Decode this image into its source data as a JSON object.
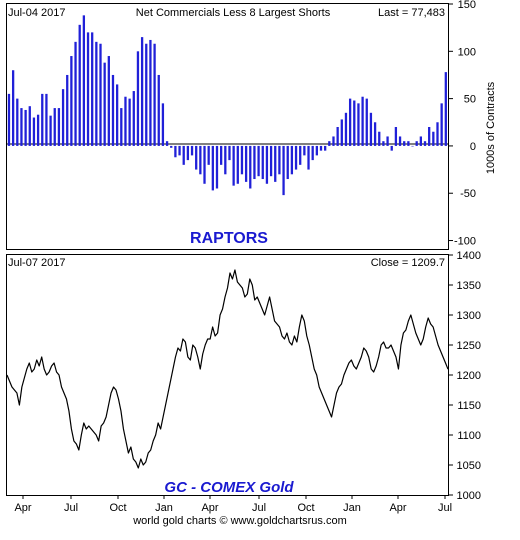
{
  "chart_data": [
    {
      "type": "bar",
      "title": "Net Commercials Less 8 Largest Shorts",
      "date_label": "Jul-04  2017",
      "last_label": "Last = 77,483",
      "ylabel": "1000s of Contracts",
      "annotation": "RAPTORS",
      "ylim": [
        -110,
        150
      ],
      "yticks": [
        150,
        100,
        50,
        0,
        -50,
        -100
      ],
      "grid": false,
      "colors": {
        "bars": "#2020d8",
        "annotation": "#1a1ad0"
      },
      "series": [
        {
          "values": [
            55,
            80,
            50,
            40,
            38,
            42,
            30,
            33,
            55,
            55,
            32,
            40,
            40,
            60,
            75,
            95,
            110,
            128,
            138,
            120,
            120,
            110,
            108,
            88,
            95,
            75,
            65,
            40,
            52,
            50,
            58,
            100,
            115,
            108,
            112,
            108,
            75,
            45,
            5,
            -2,
            -12,
            -10,
            -20,
            -15,
            -10,
            -25,
            -30,
            -40,
            -20,
            -47,
            -45,
            -20,
            -30,
            -15,
            -42,
            -40,
            -30,
            -38,
            -45,
            -35,
            -32,
            -35,
            -40,
            -32,
            -38,
            -30,
            -52,
            -35,
            -30,
            -25,
            -20,
            -10,
            -25,
            -15,
            -10,
            -5,
            -5,
            5,
            10,
            20,
            28,
            35,
            50,
            48,
            45,
            52,
            50,
            35,
            25,
            15,
            5,
            10,
            -5,
            20,
            10,
            5,
            5,
            0,
            5,
            10,
            5,
            20,
            15,
            25,
            45,
            78
          ]
        }
      ]
    },
    {
      "type": "line",
      "date_label": "Jul-07  2017",
      "last_label": "Close = 1209.7",
      "annotation": "GC - COMEX Gold",
      "ylim": [
        1000,
        1400
      ],
      "yticks": [
        1400,
        1350,
        1300,
        1250,
        1200,
        1150,
        1100,
        1050,
        1000
      ],
      "x_ticks": [
        "Apr",
        "Jul",
        "Oct",
        "Jan",
        "Apr",
        "Jul",
        "Oct",
        "Jan",
        "Apr",
        "Jul"
      ],
      "grid": false,
      "colors": {
        "line": "#000000",
        "annotation": "#1a1ad0"
      },
      "series": [
        {
          "values": [
            1200,
            1190,
            1180,
            1175,
            1170,
            1150,
            1180,
            1195,
            1210,
            1220,
            1205,
            1210,
            1225,
            1215,
            1230,
            1210,
            1200,
            1205,
            1215,
            1220,
            1205,
            1200,
            1180,
            1170,
            1160,
            1140,
            1110,
            1090,
            1085,
            1075,
            1100,
            1120,
            1110,
            1115,
            1110,
            1105,
            1100,
            1090,
            1115,
            1120,
            1130,
            1150,
            1170,
            1180,
            1175,
            1160,
            1140,
            1110,
            1090,
            1070,
            1080,
            1060,
            1055,
            1045,
            1060,
            1050,
            1055,
            1070,
            1075,
            1090,
            1100,
            1120,
            1110,
            1130,
            1150,
            1170,
            1190,
            1210,
            1230,
            1245,
            1240,
            1260,
            1255,
            1230,
            1225,
            1250,
            1245,
            1230,
            1210,
            1235,
            1250,
            1260,
            1260,
            1280,
            1265,
            1270,
            1300,
            1310,
            1330,
            1345,
            1370,
            1360,
            1375,
            1355,
            1350,
            1345,
            1330,
            1335,
            1360,
            1350,
            1325,
            1330,
            1320,
            1310,
            1300,
            1315,
            1330,
            1310,
            1290,
            1285,
            1280,
            1265,
            1260,
            1270,
            1255,
            1250,
            1265,
            1255,
            1280,
            1300,
            1290,
            1265,
            1250,
            1230,
            1210,
            1200,
            1180,
            1170,
            1160,
            1150,
            1140,
            1130,
            1150,
            1170,
            1180,
            1185,
            1200,
            1210,
            1220,
            1225,
            1215,
            1210,
            1220,
            1230,
            1245,
            1240,
            1230,
            1210,
            1205,
            1215,
            1230,
            1250,
            1255,
            1245,
            1245,
            1250,
            1240,
            1230,
            1210,
            1250,
            1270,
            1275,
            1290,
            1300,
            1285,
            1270,
            1260,
            1250,
            1260,
            1280,
            1295,
            1285,
            1280,
            1265,
            1250,
            1240,
            1230,
            1220,
            1209.7
          ]
        }
      ]
    }
  ],
  "footer": {
    "x_ticks": [
      "Apr",
      "Jul",
      "Oct",
      "Jan",
      "Apr",
      "Jul",
      "Oct",
      "Jan",
      "Apr",
      "Jul"
    ],
    "credit": "world gold charts © www.goldchartsrus.com"
  }
}
